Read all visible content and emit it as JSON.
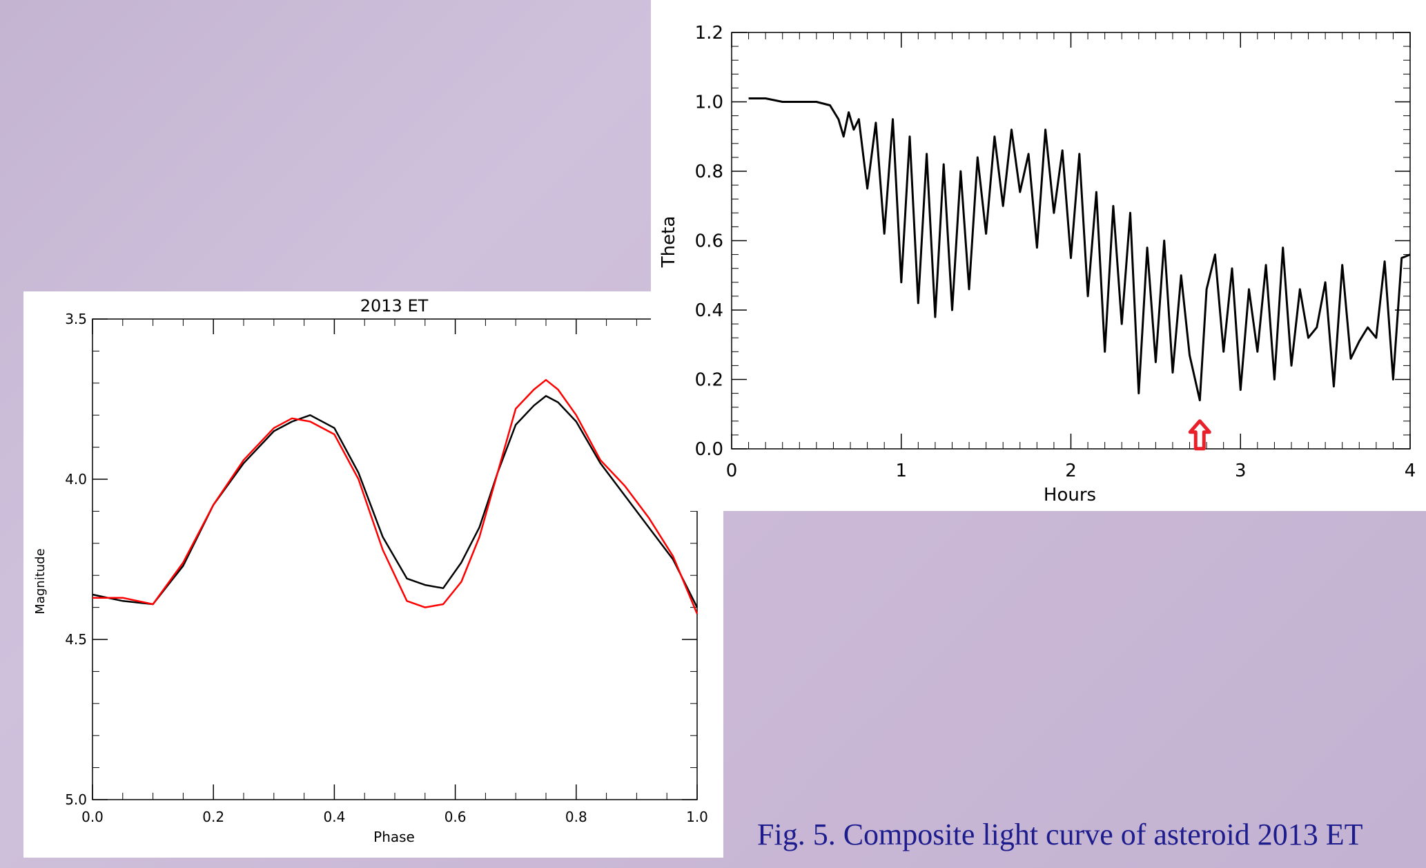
{
  "caption": "Fig. 5. Composite light curve of asteroid 2013 ET",
  "colors": {
    "series_black": "#000000",
    "series_red": "#ff0000",
    "arrow": "#e8202a",
    "caption": "#1c1c8c"
  },
  "chart_data": [
    {
      "type": "line",
      "title": "2013 ET",
      "xlabel": "Phase",
      "ylabel": "Magnitude",
      "xlim": [
        0.0,
        1.0
      ],
      "ylim": [
        5.0,
        3.5
      ],
      "y_inverted": true,
      "xticks": [
        "0.0",
        "0.2",
        "0.4",
        "0.6",
        "0.8",
        "1.0"
      ],
      "yticks": [
        "3.5",
        "4.0",
        "4.5",
        "5.0"
      ],
      "series": [
        {
          "color": "#000000",
          "x": [
            0.0,
            0.05,
            0.1,
            0.15,
            0.2,
            0.25,
            0.3,
            0.33,
            0.36,
            0.4,
            0.44,
            0.48,
            0.52,
            0.55,
            0.58,
            0.61,
            0.64,
            0.67,
            0.7,
            0.73,
            0.75,
            0.77,
            0.8,
            0.84,
            0.88,
            0.92,
            0.96,
            1.0
          ],
          "y": [
            4.36,
            4.38,
            4.39,
            4.27,
            4.08,
            3.95,
            3.85,
            3.82,
            3.8,
            3.84,
            3.98,
            4.18,
            4.31,
            4.33,
            4.34,
            4.26,
            4.15,
            3.98,
            3.83,
            3.77,
            3.74,
            3.76,
            3.82,
            3.95,
            4.05,
            4.15,
            4.25,
            4.4
          ]
        },
        {
          "color": "#ff0000",
          "x": [
            0.0,
            0.05,
            0.1,
            0.15,
            0.2,
            0.25,
            0.3,
            0.33,
            0.36,
            0.4,
            0.44,
            0.48,
            0.52,
            0.55,
            0.58,
            0.61,
            0.64,
            0.67,
            0.7,
            0.73,
            0.75,
            0.77,
            0.8,
            0.84,
            0.88,
            0.92,
            0.96,
            1.0
          ],
          "y": [
            4.37,
            4.37,
            4.39,
            4.26,
            4.08,
            3.94,
            3.84,
            3.81,
            3.82,
            3.86,
            4.0,
            4.22,
            4.38,
            4.4,
            4.39,
            4.32,
            4.18,
            3.98,
            3.78,
            3.72,
            3.69,
            3.72,
            3.8,
            3.94,
            4.02,
            4.12,
            4.24,
            4.42
          ]
        }
      ]
    },
    {
      "type": "line",
      "title": "",
      "xlabel": "Hours",
      "ylabel": "Theta",
      "xlim": [
        0,
        4
      ],
      "ylim": [
        0.0,
        1.2
      ],
      "xticks": [
        "0",
        "1",
        "2",
        "3",
        "4"
      ],
      "yticks": [
        "0.0",
        "0.2",
        "0.4",
        "0.6",
        "0.8",
        "1.0",
        "1.2"
      ],
      "annotation": {
        "type": "arrow",
        "x": 2.76,
        "y": 0.12,
        "color": "#e8202a"
      },
      "series": [
        {
          "color": "#000000",
          "x": [
            0.1,
            0.2,
            0.3,
            0.4,
            0.5,
            0.58,
            0.63,
            0.66,
            0.69,
            0.72,
            0.75,
            0.8,
            0.85,
            0.9,
            0.95,
            1.0,
            1.05,
            1.1,
            1.15,
            1.2,
            1.25,
            1.3,
            1.35,
            1.4,
            1.45,
            1.5,
            1.55,
            1.6,
            1.65,
            1.7,
            1.75,
            1.8,
            1.85,
            1.9,
            1.95,
            2.0,
            2.05,
            2.1,
            2.15,
            2.2,
            2.25,
            2.3,
            2.35,
            2.4,
            2.45,
            2.5,
            2.55,
            2.6,
            2.65,
            2.7,
            2.76,
            2.8,
            2.85,
            2.9,
            2.95,
            3.0,
            3.05,
            3.1,
            3.15,
            3.2,
            3.25,
            3.3,
            3.35,
            3.4,
            3.45,
            3.5,
            3.55,
            3.6,
            3.65,
            3.7,
            3.75,
            3.8,
            3.85,
            3.9,
            3.95,
            4.0
          ],
          "y": [
            1.01,
            1.01,
            1.0,
            1.0,
            1.0,
            0.99,
            0.95,
            0.9,
            0.97,
            0.92,
            0.95,
            0.75,
            0.94,
            0.62,
            0.95,
            0.48,
            0.9,
            0.42,
            0.85,
            0.38,
            0.82,
            0.4,
            0.8,
            0.46,
            0.84,
            0.62,
            0.9,
            0.7,
            0.92,
            0.74,
            0.85,
            0.58,
            0.92,
            0.68,
            0.86,
            0.55,
            0.85,
            0.44,
            0.74,
            0.28,
            0.7,
            0.36,
            0.68,
            0.16,
            0.58,
            0.25,
            0.6,
            0.22,
            0.5,
            0.27,
            0.14,
            0.46,
            0.56,
            0.28,
            0.52,
            0.17,
            0.46,
            0.28,
            0.53,
            0.2,
            0.58,
            0.24,
            0.46,
            0.32,
            0.35,
            0.48,
            0.18,
            0.53,
            0.26,
            0.31,
            0.35,
            0.32,
            0.54,
            0.2,
            0.55,
            0.56
          ]
        }
      ]
    }
  ]
}
